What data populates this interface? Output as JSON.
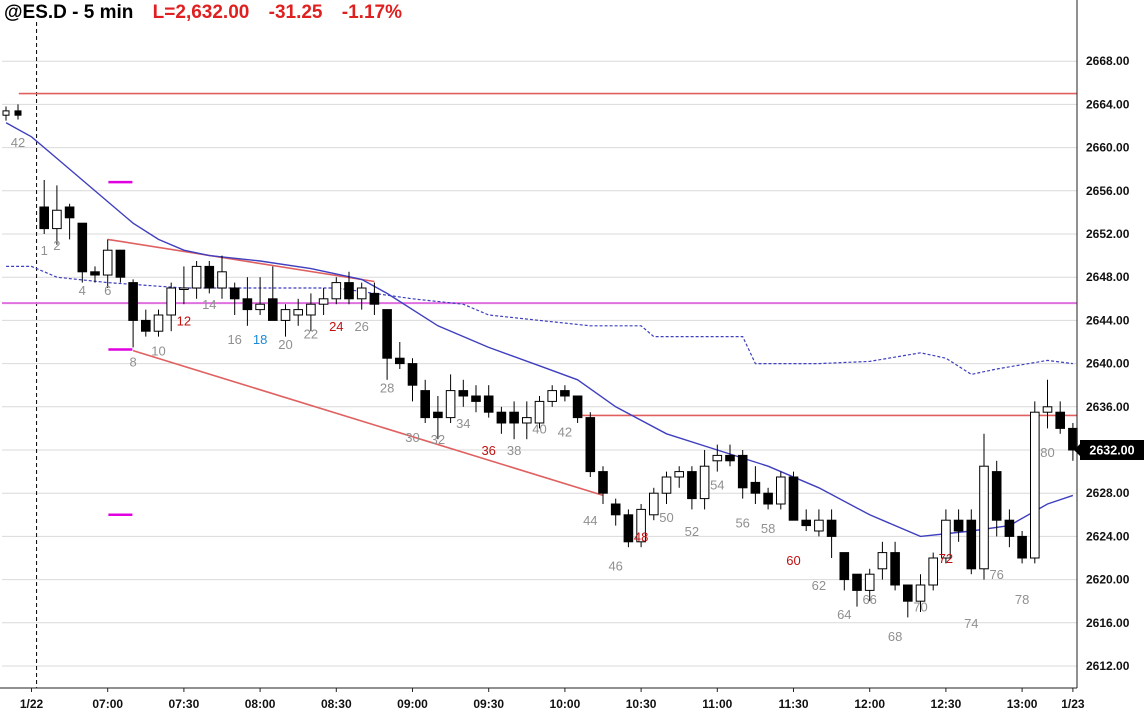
{
  "header": {
    "symbol": "@ES.D - 5 min",
    "last": "L=2,632.00",
    "change": "-31.25",
    "pct": "-1.17%"
  },
  "colors": {
    "background": "#ffffff",
    "grid": "#d9d9d9",
    "candle": "#000000",
    "ema": "#3f3fbf",
    "avg_dashed": "#3f3fbf",
    "red_line": "#e06060",
    "magenta_line": "#e070e0",
    "magenta_tick": "#e000e0",
    "label_gray": "#909090",
    "label_red": "#c01010",
    "label_blue": "#1a8ad4"
  },
  "chart_data": {
    "type": "candlestick",
    "ylim": [
      2610,
      2670
    ],
    "y_ticks": [
      2612,
      2616,
      2620,
      2624,
      2628,
      2632,
      2636,
      2640,
      2644,
      2648,
      2652,
      2656,
      2660,
      2664,
      2668
    ],
    "y_tick_labels": [
      "2612.00",
      "2616.00",
      "2620.00",
      "2624.00",
      "2628.00",
      "2632.00",
      "2636.00",
      "2640.00",
      "2644.00",
      "2648.00",
      "2652.00",
      "2656.00",
      "2660.00",
      "2664.00",
      "2668.00"
    ],
    "current_price": 2632,
    "current_price_label": "2632.00",
    "x_ticks": [
      {
        "bar": 0,
        "label": "1/22"
      },
      {
        "bar": 6,
        "label": "07:00"
      },
      {
        "bar": 12,
        "label": "07:30"
      },
      {
        "bar": 18,
        "label": "08:00"
      },
      {
        "bar": 24,
        "label": "08:30"
      },
      {
        "bar": 30,
        "label": "09:00"
      },
      {
        "bar": 36,
        "label": "09:30"
      },
      {
        "bar": 42,
        "label": "10:00"
      },
      {
        "bar": 48,
        "label": "10:30"
      },
      {
        "bar": 54,
        "label": "11:00"
      },
      {
        "bar": 60,
        "label": "11:30"
      },
      {
        "bar": 66,
        "label": "12:00"
      },
      {
        "bar": 72,
        "label": "12:30"
      },
      {
        "bar": 78,
        "label": "13:00"
      },
      {
        "bar": 82,
        "label": "1/23"
      }
    ],
    "prev_day_bars": [
      {
        "o": 2663.0,
        "h": 2663.8,
        "l": 2662.5,
        "c": 2663.4
      },
      {
        "o": 2663.4,
        "h": 2664.0,
        "l": 2662.6,
        "c": 2663.0
      }
    ],
    "bars": [
      {
        "n": 1,
        "o": 2654.5,
        "h": 2657.0,
        "l": 2652.0,
        "c": 2652.5
      },
      {
        "n": 2,
        "o": 2652.5,
        "h": 2656.5,
        "l": 2651.0,
        "c": 2654.2
      },
      {
        "n": 3,
        "o": 2654.5,
        "h": 2654.8,
        "l": 2651.5,
        "c": 2653.5
      },
      {
        "n": 4,
        "o": 2653.0,
        "h": 2653.0,
        "l": 2647.5,
        "c": 2648.5
      },
      {
        "n": 5,
        "o": 2648.5,
        "h": 2649.0,
        "l": 2647.5,
        "c": 2648.2
      },
      {
        "n": 6,
        "o": 2648.2,
        "h": 2651.5,
        "l": 2647.0,
        "c": 2650.5
      },
      {
        "n": 7,
        "o": 2650.5,
        "h": 2650.5,
        "l": 2647.5,
        "c": 2648.0
      },
      {
        "n": 8,
        "o": 2647.5,
        "h": 2647.8,
        "l": 2641.5,
        "c": 2644.0
      },
      {
        "n": 9,
        "o": 2644.0,
        "h": 2645.0,
        "l": 2642.5,
        "c": 2643.0
      },
      {
        "n": 10,
        "o": 2643.0,
        "h": 2645.0,
        "l": 2642.5,
        "c": 2644.5
      },
      {
        "n": 11,
        "o": 2644.5,
        "h": 2647.5,
        "l": 2643.0,
        "c": 2647.0
      },
      {
        "n": 12,
        "o": 2647.0,
        "h": 2649.0,
        "l": 2645.5,
        "c": 2647.0
      },
      {
        "n": 13,
        "o": 2647.0,
        "h": 2649.5,
        "l": 2646.0,
        "c": 2649.0
      },
      {
        "n": 14,
        "o": 2649.0,
        "h": 2649.5,
        "l": 2646.5,
        "c": 2647.0
      },
      {
        "n": 15,
        "o": 2647.0,
        "h": 2650.0,
        "l": 2646.0,
        "c": 2648.5
      },
      {
        "n": 16,
        "o": 2647.0,
        "h": 2647.5,
        "l": 2644.5,
        "c": 2646.0
      },
      {
        "n": 17,
        "o": 2646.0,
        "h": 2648.0,
        "l": 2643.5,
        "c": 2645.0
      },
      {
        "n": 18,
        "o": 2645.0,
        "h": 2648.0,
        "l": 2644.5,
        "c": 2645.5
      },
      {
        "n": 19,
        "o": 2646.0,
        "h": 2649.0,
        "l": 2644.5,
        "c": 2644.0
      },
      {
        "n": 20,
        "o": 2644.0,
        "h": 2645.5,
        "l": 2642.5,
        "c": 2645.0
      },
      {
        "n": 21,
        "o": 2644.5,
        "h": 2646.0,
        "l": 2643.5,
        "c": 2645.0
      },
      {
        "n": 22,
        "o": 2644.5,
        "h": 2646.5,
        "l": 2643.0,
        "c": 2645.5
      },
      {
        "n": 23,
        "o": 2645.5,
        "h": 2647.0,
        "l": 2644.5,
        "c": 2646.0
      },
      {
        "n": 24,
        "o": 2646.0,
        "h": 2648.0,
        "l": 2645.5,
        "c": 2647.5
      },
      {
        "n": 25,
        "o": 2647.5,
        "h": 2648.5,
        "l": 2645.5,
        "c": 2646.0
      },
      {
        "n": 26,
        "o": 2646.0,
        "h": 2647.5,
        "l": 2645.0,
        "c": 2647.0
      },
      {
        "n": 27,
        "o": 2646.5,
        "h": 2647.5,
        "l": 2644.5,
        "c": 2645.5
      },
      {
        "n": 28,
        "o": 2645.0,
        "h": 2645.0,
        "l": 2638.5,
        "c": 2640.5
      },
      {
        "n": 29,
        "o": 2640.5,
        "h": 2642.0,
        "l": 2639.5,
        "c": 2640.0
      },
      {
        "n": 30,
        "o": 2640.0,
        "h": 2640.5,
        "l": 2636.5,
        "c": 2638.0
      },
      {
        "n": 31,
        "o": 2637.5,
        "h": 2638.5,
        "l": 2634.5,
        "c": 2635.0
      },
      {
        "n": 32,
        "o": 2635.5,
        "h": 2637.0,
        "l": 2633.0,
        "c": 2635.0
      },
      {
        "n": 33,
        "o": 2635.0,
        "h": 2639.0,
        "l": 2634.5,
        "c": 2637.5
      },
      {
        "n": 34,
        "o": 2637.5,
        "h": 2638.5,
        "l": 2636.0,
        "c": 2637.0
      },
      {
        "n": 35,
        "o": 2637.0,
        "h": 2638.0,
        "l": 2635.5,
        "c": 2636.5
      },
      {
        "n": 36,
        "o": 2637.0,
        "h": 2638.0,
        "l": 2635.0,
        "c": 2635.5
      },
      {
        "n": 37,
        "o": 2635.5,
        "h": 2636.0,
        "l": 2633.5,
        "c": 2634.5
      },
      {
        "n": 38,
        "o": 2635.5,
        "h": 2636.5,
        "l": 2633.0,
        "c": 2634.5
      },
      {
        "n": 39,
        "o": 2634.5,
        "h": 2636.5,
        "l": 2633.0,
        "c": 2635.0
      },
      {
        "n": 40,
        "o": 2634.5,
        "h": 2637.0,
        "l": 2634.0,
        "c": 2636.5
      },
      {
        "n": 41,
        "o": 2636.5,
        "h": 2638.0,
        "l": 2636.0,
        "c": 2637.5
      },
      {
        "n": 42,
        "o": 2637.5,
        "h": 2638.0,
        "l": 2636.5,
        "c": 2637.0
      },
      {
        "n": 43,
        "o": 2637.0,
        "h": 2637.0,
        "l": 2634.5,
        "c": 2635.0
      },
      {
        "n": 44,
        "o": 2635.0,
        "h": 2635.5,
        "l": 2629.5,
        "c": 2630.0
      },
      {
        "n": 45,
        "o": 2630.0,
        "h": 2630.5,
        "l": 2627.0,
        "c": 2628.0
      },
      {
        "n": 46,
        "o": 2627.0,
        "h": 2627.5,
        "l": 2625.0,
        "c": 2626.0
      },
      {
        "n": 47,
        "o": 2626.0,
        "h": 2626.5,
        "l": 2623.0,
        "c": 2623.5
      },
      {
        "n": 48,
        "o": 2623.5,
        "h": 2627.0,
        "l": 2623.0,
        "c": 2626.5
      },
      {
        "n": 49,
        "o": 2626.0,
        "h": 2628.5,
        "l": 2625.5,
        "c": 2628.0
      },
      {
        "n": 50,
        "o": 2628.0,
        "h": 2630.0,
        "l": 2627.0,
        "c": 2629.5
      },
      {
        "n": 51,
        "o": 2629.5,
        "h": 2630.5,
        "l": 2628.5,
        "c": 2630.0
      },
      {
        "n": 52,
        "o": 2630.0,
        "h": 2630.5,
        "l": 2626.5,
        "c": 2627.5
      },
      {
        "n": 53,
        "o": 2627.5,
        "h": 2632.0,
        "l": 2626.5,
        "c": 2630.5
      },
      {
        "n": 54,
        "o": 2631.0,
        "h": 2632.5,
        "l": 2630.0,
        "c": 2631.5
      },
      {
        "n": 55,
        "o": 2631.5,
        "h": 2632.5,
        "l": 2630.5,
        "c": 2631.0
      },
      {
        "n": 56,
        "o": 2631.5,
        "h": 2632.0,
        "l": 2627.5,
        "c": 2628.5
      },
      {
        "n": 57,
        "o": 2629.0,
        "h": 2630.5,
        "l": 2627.0,
        "c": 2628.0
      },
      {
        "n": 58,
        "o": 2628.0,
        "h": 2628.5,
        "l": 2626.5,
        "c": 2627.0
      },
      {
        "n": 59,
        "o": 2627.0,
        "h": 2630.0,
        "l": 2626.5,
        "c": 2629.5
      },
      {
        "n": 60,
        "o": 2629.5,
        "h": 2630.0,
        "l": 2625.5,
        "c": 2625.5
      },
      {
        "n": 61,
        "o": 2625.5,
        "h": 2626.5,
        "l": 2624.5,
        "c": 2625.0
      },
      {
        "n": 62,
        "o": 2624.5,
        "h": 2626.5,
        "l": 2624.0,
        "c": 2625.5
      },
      {
        "n": 63,
        "o": 2625.5,
        "h": 2626.5,
        "l": 2622.0,
        "c": 2624.0
      },
      {
        "n": 64,
        "o": 2622.5,
        "h": 2622.5,
        "l": 2619.0,
        "c": 2620.0
      },
      {
        "n": 65,
        "o": 2620.5,
        "h": 2620.5,
        "l": 2617.5,
        "c": 2619.0
      },
      {
        "n": 66,
        "o": 2619.0,
        "h": 2621.0,
        "l": 2618.0,
        "c": 2620.5
      },
      {
        "n": 67,
        "o": 2621.0,
        "h": 2623.5,
        "l": 2620.0,
        "c": 2622.5
      },
      {
        "n": 68,
        "o": 2622.5,
        "h": 2623.5,
        "l": 2619.0,
        "c": 2619.5
      },
      {
        "n": 69,
        "o": 2619.5,
        "h": 2619.5,
        "l": 2616.5,
        "c": 2618.0
      },
      {
        "n": 70,
        "o": 2618.0,
        "h": 2620.5,
        "l": 2617.0,
        "c": 2619.5
      },
      {
        "n": 71,
        "o": 2619.5,
        "h": 2622.5,
        "l": 2619.0,
        "c": 2622.0
      },
      {
        "n": 72,
        "o": 2622.0,
        "h": 2626.5,
        "l": 2621.5,
        "c": 2625.5
      },
      {
        "n": 73,
        "o": 2625.5,
        "h": 2626.5,
        "l": 2623.5,
        "c": 2624.5
      },
      {
        "n": 74,
        "o": 2625.5,
        "h": 2626.5,
        "l": 2620.5,
        "c": 2621.0
      },
      {
        "n": 75,
        "o": 2621.0,
        "h": 2633.5,
        "l": 2620.0,
        "c": 2630.5
      },
      {
        "n": 76,
        "o": 2630.0,
        "h": 2631.0,
        "l": 2624.0,
        "c": 2625.5
      },
      {
        "n": 77,
        "o": 2625.5,
        "h": 2626.5,
        "l": 2623.0,
        "c": 2624.0
      },
      {
        "n": 78,
        "o": 2624.0,
        "h": 2624.5,
        "l": 2621.5,
        "c": 2622.0
      },
      {
        "n": 79,
        "o": 2622.0,
        "h": 2636.5,
        "l": 2621.5,
        "c": 2635.5
      },
      {
        "n": 80,
        "o": 2635.5,
        "h": 2638.5,
        "l": 2634.0,
        "c": 2636.0
      },
      {
        "n": 81,
        "o": 2635.5,
        "h": 2636.5,
        "l": 2633.5,
        "c": 2634.0
      },
      {
        "n": 82,
        "o": 2634.0,
        "h": 2634.5,
        "l": 2631.0,
        "c": 2632.0
      }
    ],
    "bar_labels": [
      {
        "bar": -1,
        "text": "42",
        "y": 2660.5,
        "color": "gray"
      },
      {
        "bar": 1,
        "text": "1",
        "y": 2650.5,
        "color": "gray"
      },
      {
        "bar": 2,
        "text": "2",
        "y": 2651.0,
        "color": "gray"
      },
      {
        "bar": 4,
        "text": "4",
        "y": 2646.8,
        "color": "gray"
      },
      {
        "bar": 6,
        "text": "6",
        "y": 2646.8,
        "color": "gray"
      },
      {
        "bar": 8,
        "text": "8",
        "y": 2640.2,
        "color": "gray"
      },
      {
        "bar": 10,
        "text": "10",
        "y": 2641.2,
        "color": "gray"
      },
      {
        "bar": 12,
        "text": "12",
        "y": 2644.0,
        "color": "red"
      },
      {
        "bar": 14,
        "text": "14",
        "y": 2645.5,
        "color": "gray"
      },
      {
        "bar": 16,
        "text": "16",
        "y": 2642.3,
        "color": "gray"
      },
      {
        "bar": 18,
        "text": "18",
        "y": 2642.3,
        "color": "blue"
      },
      {
        "bar": 20,
        "text": "20",
        "y": 2641.8,
        "color": "gray"
      },
      {
        "bar": 22,
        "text": "22",
        "y": 2642.8,
        "color": "gray"
      },
      {
        "bar": 24,
        "text": "24",
        "y": 2643.5,
        "color": "red"
      },
      {
        "bar": 26,
        "text": "26",
        "y": 2643.5,
        "color": "gray"
      },
      {
        "bar": 28,
        "text": "28",
        "y": 2637.8,
        "color": "gray"
      },
      {
        "bar": 30,
        "text": "30",
        "y": 2633.2,
        "color": "gray"
      },
      {
        "bar": 32,
        "text": "32",
        "y": 2633.0,
        "color": "gray"
      },
      {
        "bar": 34,
        "text": "34",
        "y": 2634.5,
        "color": "gray"
      },
      {
        "bar": 36,
        "text": "36",
        "y": 2632.0,
        "color": "red"
      },
      {
        "bar": 38,
        "text": "38",
        "y": 2632.0,
        "color": "gray"
      },
      {
        "bar": 40,
        "text": "40",
        "y": 2634.0,
        "color": "gray"
      },
      {
        "bar": 42,
        "text": "42",
        "y": 2633.7,
        "color": "gray"
      },
      {
        "bar": 44,
        "text": "44",
        "y": 2625.5,
        "color": "gray"
      },
      {
        "bar": 46,
        "text": "46",
        "y": 2621.3,
        "color": "gray"
      },
      {
        "bar": 48,
        "text": "48",
        "y": 2624.0,
        "color": "red"
      },
      {
        "bar": 50,
        "text": "50",
        "y": 2625.8,
        "color": "gray"
      },
      {
        "bar": 52,
        "text": "52",
        "y": 2624.5,
        "color": "gray"
      },
      {
        "bar": 54,
        "text": "54",
        "y": 2628.8,
        "color": "gray"
      },
      {
        "bar": 56,
        "text": "56",
        "y": 2625.3,
        "color": "gray"
      },
      {
        "bar": 58,
        "text": "58",
        "y": 2624.8,
        "color": "gray"
      },
      {
        "bar": 60,
        "text": "60",
        "y": 2621.8,
        "color": "red"
      },
      {
        "bar": 62,
        "text": "62",
        "y": 2619.5,
        "color": "gray"
      },
      {
        "bar": 64,
        "text": "64",
        "y": 2616.8,
        "color": "gray"
      },
      {
        "bar": 66,
        "text": "66",
        "y": 2618.2,
        "color": "gray"
      },
      {
        "bar": 68,
        "text": "68",
        "y": 2614.8,
        "color": "gray"
      },
      {
        "bar": 70,
        "text": "70",
        "y": 2617.5,
        "color": "gray"
      },
      {
        "bar": 72,
        "text": "72",
        "y": 2622.0,
        "color": "red"
      },
      {
        "bar": 74,
        "text": "74",
        "y": 2616.0,
        "color": "gray"
      },
      {
        "bar": 76,
        "text": "76",
        "y": 2620.5,
        "color": "gray"
      },
      {
        "bar": 78,
        "text": "78",
        "y": 2618.2,
        "color": "gray"
      },
      {
        "bar": 80,
        "text": "80",
        "y": 2631.8,
        "color": "gray"
      }
    ],
    "ema": [
      {
        "bar": -2,
        "y": 2662.3
      },
      {
        "bar": 0,
        "y": 2661.0
      },
      {
        "bar": 2,
        "y": 2659.0
      },
      {
        "bar": 4,
        "y": 2657.0
      },
      {
        "bar": 6,
        "y": 2655.0
      },
      {
        "bar": 8,
        "y": 2653.0
      },
      {
        "bar": 10,
        "y": 2651.5
      },
      {
        "bar": 12,
        "y": 2650.5
      },
      {
        "bar": 14,
        "y": 2650.0
      },
      {
        "bar": 18,
        "y": 2649.5
      },
      {
        "bar": 22,
        "y": 2648.8
      },
      {
        "bar": 26,
        "y": 2647.8
      },
      {
        "bar": 28,
        "y": 2646.5
      },
      {
        "bar": 32,
        "y": 2643.5
      },
      {
        "bar": 36,
        "y": 2641.5
      },
      {
        "bar": 40,
        "y": 2639.8
      },
      {
        "bar": 43,
        "y": 2638.5
      },
      {
        "bar": 46,
        "y": 2636.0
      },
      {
        "bar": 50,
        "y": 2633.5
      },
      {
        "bar": 54,
        "y": 2632.0
      },
      {
        "bar": 58,
        "y": 2630.5
      },
      {
        "bar": 62,
        "y": 2628.5
      },
      {
        "bar": 66,
        "y": 2626.0
      },
      {
        "bar": 70,
        "y": 2624.0
      },
      {
        "bar": 74,
        "y": 2624.5
      },
      {
        "bar": 77,
        "y": 2625.0
      },
      {
        "bar": 80,
        "y": 2627.0
      },
      {
        "bar": 82,
        "y": 2627.8
      }
    ],
    "avg_dashed": [
      {
        "bar": -2,
        "y": 2649.0
      },
      {
        "bar": 0,
        "y": 2649.0
      },
      {
        "bar": 2,
        "y": 2648.0
      },
      {
        "bar": 6,
        "y": 2647.5
      },
      {
        "bar": 12,
        "y": 2647.0
      },
      {
        "bar": 18,
        "y": 2647.0
      },
      {
        "bar": 24,
        "y": 2647.0
      },
      {
        "bar": 30,
        "y": 2646.0
      },
      {
        "bar": 34,
        "y": 2645.5
      },
      {
        "bar": 36,
        "y": 2644.5
      },
      {
        "bar": 40,
        "y": 2644.0
      },
      {
        "bar": 44,
        "y": 2643.5
      },
      {
        "bar": 48,
        "y": 2643.5
      },
      {
        "bar": 49,
        "y": 2642.5
      },
      {
        "bar": 56,
        "y": 2642.5
      },
      {
        "bar": 57,
        "y": 2640.0
      },
      {
        "bar": 62,
        "y": 2640.0
      },
      {
        "bar": 66,
        "y": 2640.2
      },
      {
        "bar": 70,
        "y": 2641.0
      },
      {
        "bar": 72,
        "y": 2640.5
      },
      {
        "bar": 74,
        "y": 2639.0
      },
      {
        "bar": 76,
        "y": 2639.5
      },
      {
        "bar": 80,
        "y": 2640.3
      },
      {
        "bar": 82,
        "y": 2640.0
      }
    ],
    "red_lines": [
      {
        "from_bar": -1,
        "y1": 2665.0,
        "to_bar": 84,
        "y2": 2665.0
      },
      {
        "from_bar": 43,
        "y1": 2635.2,
        "to_bar": 84,
        "y2": 2635.2
      },
      {
        "from_bar": 6,
        "y1": 2651.5,
        "to_bar": 27,
        "y2": 2647.6
      },
      {
        "from_bar": 8,
        "y1": 2641.2,
        "to_bar": 45,
        "y2": 2627.8
      }
    ],
    "magenta_line": {
      "y": 2645.6
    },
    "magenta_ticks": [
      {
        "bar": 7,
        "y": 2656.8
      },
      {
        "bar": 7,
        "y": 2641.3
      },
      {
        "bar": 7,
        "y": 2626.0
      }
    ],
    "session_divider_bar": 0.4
  }
}
